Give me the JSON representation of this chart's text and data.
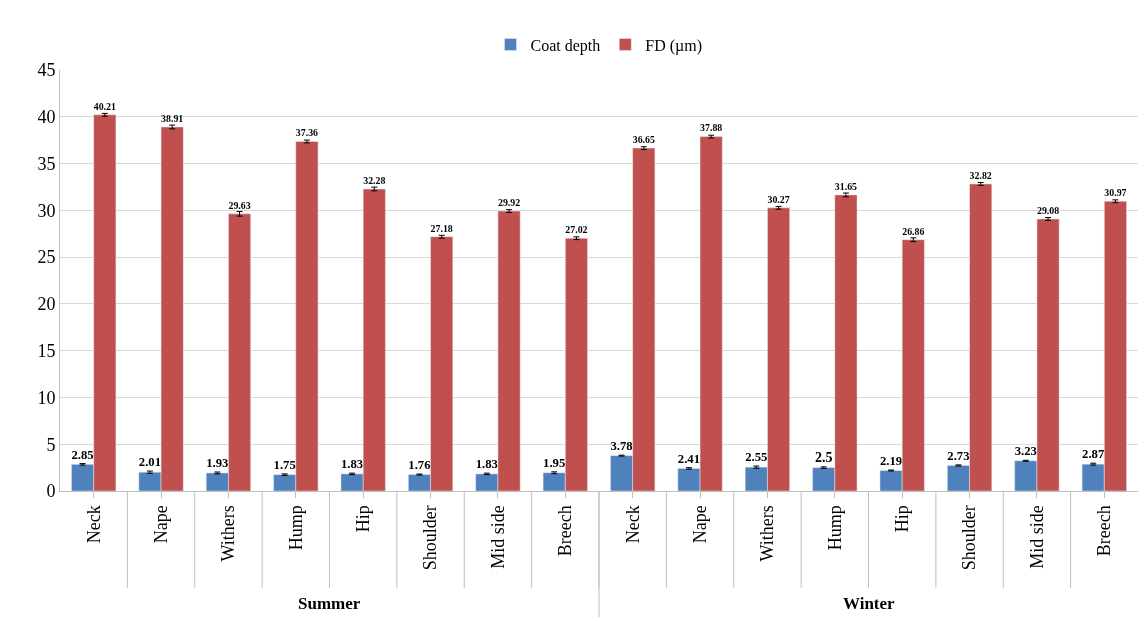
{
  "chart_data": {
    "type": "bar",
    "categories": [
      "Neck",
      "Nape",
      "Withers",
      "Hump",
      "Hip",
      "Shoulder",
      "Mid side",
      "Breech",
      "Neck",
      "Nape",
      "Withers",
      "Hump",
      "Hip",
      "Shoulder",
      "Mid side",
      "Breech"
    ],
    "series": [
      {
        "name": "Coat depth",
        "color": "#4f81bd",
        "values": [
          2.85,
          2.01,
          1.93,
          1.75,
          1.83,
          1.76,
          1.83,
          1.95,
          3.78,
          2.41,
          2.55,
          2.5,
          2.19,
          2.73,
          3.23,
          2.87
        ],
        "errors": [
          0.08,
          0.12,
          0.1,
          0.08,
          0.08,
          0.05,
          0.08,
          0.1,
          0.05,
          0.08,
          0.12,
          0.08,
          0.05,
          0.06,
          0.05,
          0.1
        ]
      },
      {
        "name": "FD (µm)",
        "color": "#c0504d",
        "values": [
          40.21,
          38.91,
          29.63,
          37.36,
          32.28,
          27.18,
          29.92,
          27.02,
          36.65,
          37.88,
          30.27,
          31.65,
          26.86,
          32.82,
          29.08,
          30.97
        ],
        "errors": [
          0.15,
          0.2,
          0.25,
          0.15,
          0.2,
          0.15,
          0.15,
          0.15,
          0.15,
          0.15,
          0.15,
          0.2,
          0.2,
          0.15,
          0.15,
          0.15
        ]
      }
    ],
    "annotations": [
      "Summer",
      "Winter"
    ],
    "ylim": [
      0,
      45
    ],
    "yticks": [
      0,
      5,
      10,
      15,
      20,
      25,
      30,
      35,
      40,
      45
    ],
    "grid": "y",
    "legend": "top",
    "data_labels": true
  }
}
